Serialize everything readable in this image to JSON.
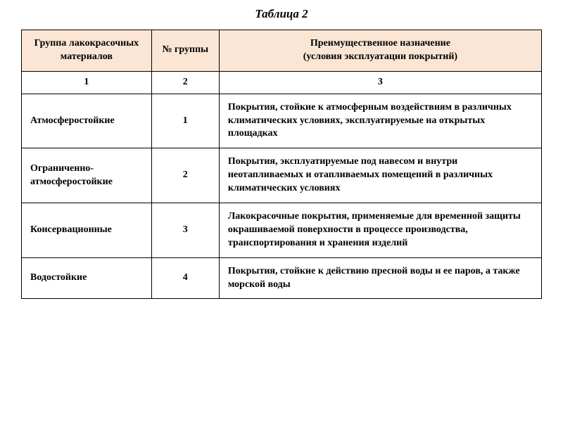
{
  "title": "Таблица 2",
  "table": {
    "header_bg": "#fbe6d5",
    "border_color": "#000000",
    "font_family": "Georgia, Times New Roman, serif",
    "font_size_pt": 14,
    "col_widths_pct": [
      25,
      13,
      62
    ],
    "columns": [
      "Группа лакокрасочных материалов",
      "№ группы",
      "Преимущественное назначение (условия эксплуатации покрытий)"
    ],
    "col3_line1": "Преимущественное назначение",
    "col3_line2": "(условия эксплуатации покрытий)",
    "num_row": [
      "1",
      "2",
      "3"
    ],
    "rows": [
      {
        "group": "Атмосферостойкие",
        "num": "1",
        "desc": "Покрытия, стойкие к атмосферным воздействиям в различных климатических условиях, эксплуатируемые на открытых площадках"
      },
      {
        "group": "Ограниченно-атмосферостойкие",
        "num": "2",
        "desc": "Покрытия, эксплуатируемые под навесом и внутри неотапливаемых и отапливаемых помещений в различных климатических условиях"
      },
      {
        "group": "Консервационные",
        "num": "3",
        "desc": "Лакокрасочные покрытия, применяемые для временной защиты окрашиваемой поверхности в процессе производства, транспортирования и хранения изделий"
      },
      {
        "group": "Водостойкие",
        "num": "4",
        "desc": "Покрытия, стойкие к действию пресной воды и ее паров, а также морской воды"
      }
    ]
  }
}
